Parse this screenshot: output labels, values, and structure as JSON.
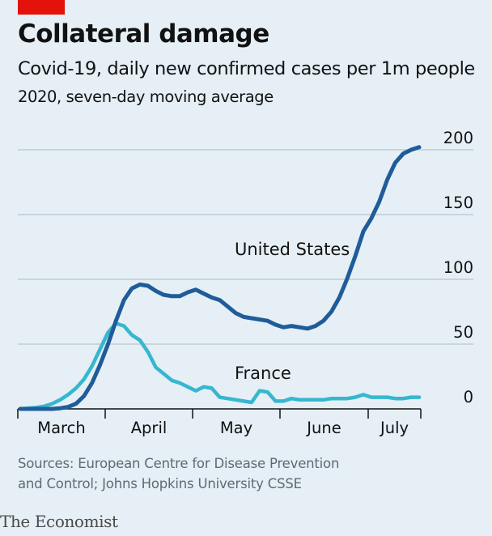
{
  "header": {
    "title": "Collateral damage",
    "subtitle": "Covid-19, daily new confirmed cases per 1m people",
    "subtitle2": "2020, seven-day moving average"
  },
  "footer": {
    "source_line1": "Sources: European Centre for Disease Prevention",
    "source_line2": "and Control; Johns Hopkins University CSSE",
    "brand": "The Economist"
  },
  "colors": {
    "background": "#e5eff5",
    "brand_red": "#e3120b",
    "us_line": "#1f5c99",
    "france_line": "#36b7cf",
    "grid": "#b7c6ce"
  },
  "chart_data": {
    "type": "line",
    "title": "Collateral damage",
    "subtitle": "Covid-19, daily new confirmed cases per 1m people",
    "xlabel": "",
    "ylabel": "",
    "ylim": [
      0,
      200
    ],
    "y_ticks": [
      0,
      50,
      100,
      150,
      200
    ],
    "x_ticks": [
      "March",
      "April",
      "May",
      "June",
      "July"
    ],
    "grid": true,
    "series": [
      {
        "name": "United States",
        "color": "#1f5c99",
        "x": [
          "Feb 22",
          "Feb 25",
          "Feb 28",
          "Mar 2",
          "Mar 5",
          "Mar 8",
          "Mar 11",
          "Mar 14",
          "Mar 17",
          "Mar 20",
          "Mar 23",
          "Mar 26",
          "Mar 29",
          "Apr 1",
          "Apr 4",
          "Apr 7",
          "Apr 10",
          "Apr 13",
          "Apr 16",
          "Apr 19",
          "Apr 22",
          "Apr 25",
          "Apr 28",
          "May 1",
          "May 4",
          "May 7",
          "May 10",
          "May 13",
          "May 16",
          "May 19",
          "May 22",
          "May 25",
          "May 28",
          "May 31",
          "Jun 3",
          "Jun 6",
          "Jun 9",
          "Jun 12",
          "Jun 15",
          "Jun 18",
          "Jun 21",
          "Jun 24",
          "Jun 27",
          "Jun 30",
          "Jul 3",
          "Jul 6",
          "Jul 9",
          "Jul 12",
          "Jul 15",
          "Jul 18",
          "Jul 20"
        ],
        "values": [
          0,
          0,
          0,
          0,
          0,
          0.5,
          1.5,
          4,
          10,
          20,
          34,
          50,
          68,
          84,
          93,
          96,
          95,
          91,
          88,
          87,
          87,
          90,
          92,
          89,
          86,
          84,
          79,
          74,
          71,
          70,
          69,
          68,
          65,
          63,
          64,
          63,
          62,
          64,
          68,
          75,
          86,
          101,
          118,
          137,
          147,
          160,
          177,
          190,
          197,
          200,
          202
        ]
      },
      {
        "name": "France",
        "color": "#36b7cf",
        "x": [
          "Feb 22",
          "Feb 25",
          "Feb 28",
          "Mar 2",
          "Mar 5",
          "Mar 8",
          "Mar 11",
          "Mar 14",
          "Mar 17",
          "Mar 20",
          "Mar 23",
          "Mar 26",
          "Mar 29",
          "Apr 1",
          "Apr 4",
          "Apr 7",
          "Apr 10",
          "Apr 13",
          "Apr 16",
          "Apr 19",
          "Apr 22",
          "Apr 25",
          "Apr 28",
          "May 1",
          "May 4",
          "May 7",
          "May 10",
          "May 13",
          "May 16",
          "May 19",
          "May 22",
          "May 25",
          "May 28",
          "May 31",
          "Jun 3",
          "Jun 6",
          "Jun 9",
          "Jun 12",
          "Jun 15",
          "Jun 18",
          "Jun 21",
          "Jun 24",
          "Jun 27",
          "Jun 30",
          "Jul 3",
          "Jul 6",
          "Jul 9",
          "Jul 12",
          "Jul 15",
          "Jul 18",
          "Jul 20"
        ],
        "values": [
          0,
          0.5,
          1,
          2,
          4,
          7,
          11,
          16,
          23,
          33,
          46,
          59,
          66,
          64,
          57,
          53,
          44,
          32,
          27,
          22,
          20,
          17,
          14,
          17,
          16,
          9,
          8,
          7,
          6,
          5,
          14,
          13,
          6,
          6,
          8,
          7,
          7,
          7,
          7,
          8,
          8,
          8,
          9,
          11,
          9,
          9,
          9,
          8,
          8,
          9,
          9
        ]
      }
    ],
    "series_labels": [
      {
        "text": "United States",
        "series": "United States"
      },
      {
        "text": "France",
        "series": "France"
      }
    ]
  }
}
